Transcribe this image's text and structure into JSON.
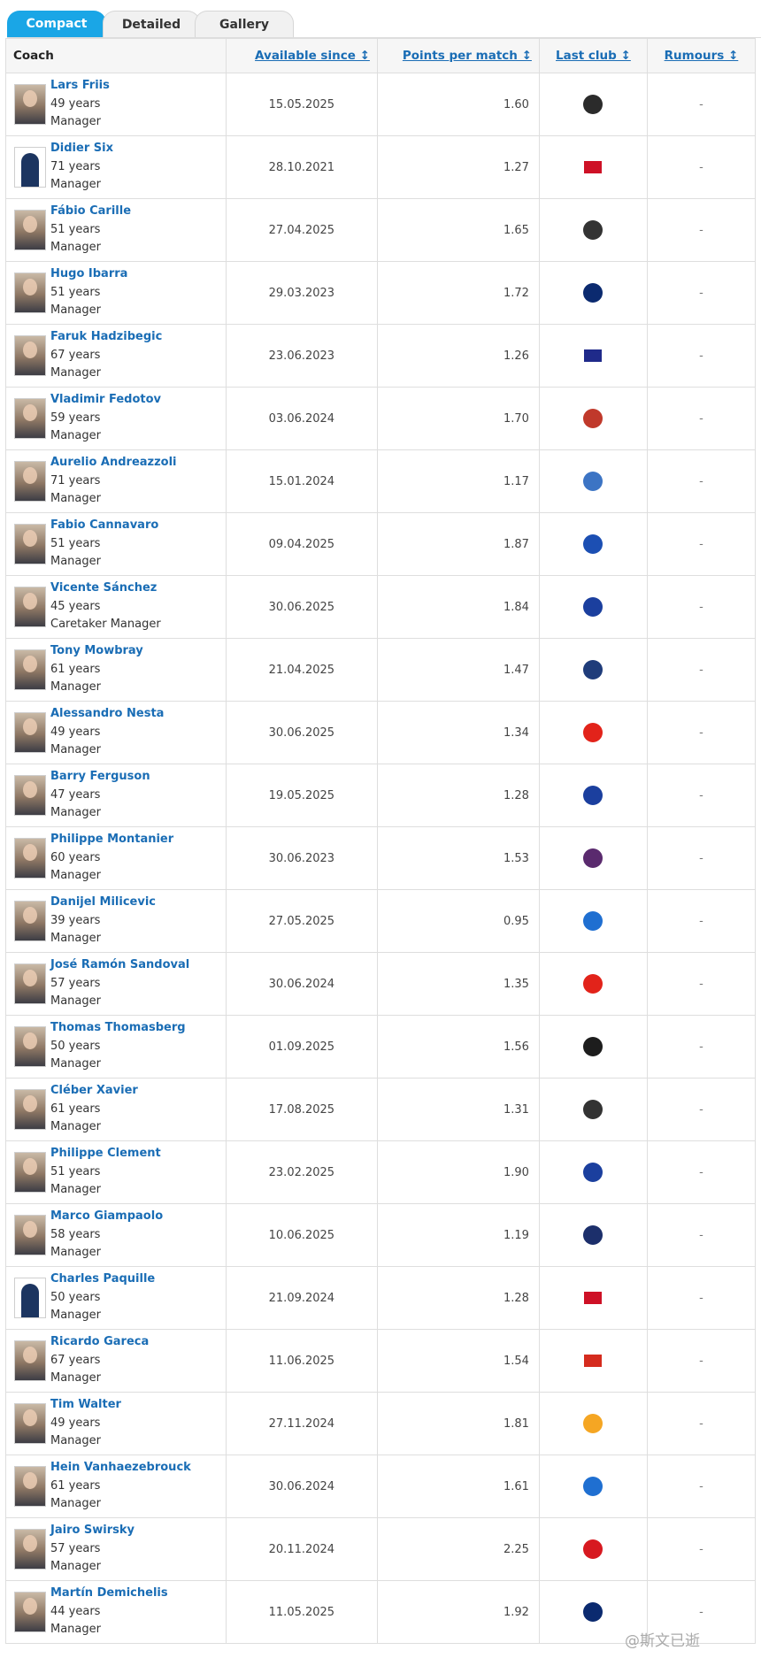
{
  "tabs": [
    "Compact",
    "Detailed",
    "Gallery"
  ],
  "headers": {
    "coach": "Coach",
    "available_since": "Available since ↕",
    "ppm": "Points per match ↕",
    "last_club": "Last club ↕",
    "rumours": "Rumours ↕"
  },
  "rows": [
    {
      "name": "Lars Friis",
      "age": "49 years",
      "role": "Manager",
      "since": "15.05.2025",
      "ppm": "1.60",
      "rumours": "-",
      "club_icon": "sparta-crest-icon",
      "club_color": "#2b2b2b"
    },
    {
      "name": "Didier Six",
      "age": "71 years",
      "role": "Manager",
      "since": "28.10.2021",
      "ppm": "1.27",
      "rumours": "-",
      "club_icon": "guinea-flag-icon",
      "club_color": "#ce1126"
    },
    {
      "name": "Fábio Carille",
      "age": "51 years",
      "role": "Manager",
      "since": "27.04.2025",
      "ppm": "1.65",
      "rumours": "-",
      "club_icon": "vasco-crest-icon",
      "club_color": "#333333"
    },
    {
      "name": "Hugo Ibarra",
      "age": "51 years",
      "role": "Manager",
      "since": "29.03.2023",
      "ppm": "1.72",
      "rumours": "-",
      "club_icon": "boca-crest-icon",
      "club_color": "#0b2a6f"
    },
    {
      "name": "Faruk Hadzibegic",
      "age": "67 years",
      "role": "Manager",
      "since": "23.06.2023",
      "ppm": "1.26",
      "rumours": "-",
      "club_icon": "bosnia-flag-icon",
      "club_color": "#1f2a8a"
    },
    {
      "name": "Vladimir Fedotov",
      "age": "59 years",
      "role": "Manager",
      "since": "03.06.2024",
      "ppm": "1.70",
      "rumours": "-",
      "club_icon": "cska-crest-icon",
      "club_color": "#c0392b"
    },
    {
      "name": "Aurelio Andreazzoli",
      "age": "71 years",
      "role": "Manager",
      "since": "15.01.2024",
      "ppm": "1.17",
      "rumours": "-",
      "club_icon": "empoli-crest-icon",
      "club_color": "#3c74c4"
    },
    {
      "name": "Fabio Cannavaro",
      "age": "51 years",
      "role": "Manager",
      "since": "09.04.2025",
      "ppm": "1.87",
      "rumours": "-",
      "club_icon": "dinamo-zagreb-crest-icon",
      "club_color": "#1c4fb3"
    },
    {
      "name": "Vicente Sánchez",
      "age": "45 years",
      "role": "Caretaker Manager",
      "since": "30.06.2025",
      "ppm": "1.84",
      "rumours": "-",
      "club_icon": "cruz-azul-crest-icon",
      "club_color": "#1b3f9e"
    },
    {
      "name": "Tony Mowbray",
      "age": "61 years",
      "role": "Manager",
      "since": "21.04.2025",
      "ppm": "1.47",
      "rumours": "-",
      "club_icon": "west-brom-crest-icon",
      "club_color": "#1f3c7a"
    },
    {
      "name": "Alessandro Nesta",
      "age": "49 years",
      "role": "Manager",
      "since": "30.06.2025",
      "ppm": "1.34",
      "rumours": "-",
      "club_icon": "monza-crest-icon",
      "club_color": "#e2231a"
    },
    {
      "name": "Barry Ferguson",
      "age": "47 years",
      "role": "Manager",
      "since": "19.05.2025",
      "ppm": "1.28",
      "rumours": "-",
      "club_icon": "rangers-crest-icon",
      "club_color": "#1b3f9e"
    },
    {
      "name": "Philippe Montanier",
      "age": "60 years",
      "role": "Manager",
      "since": "30.06.2023",
      "ppm": "1.53",
      "rumours": "-",
      "club_icon": "toulouse-crest-icon",
      "club_color": "#5a2a6e"
    },
    {
      "name": "Danijel Milicevic",
      "age": "39 years",
      "role": "Manager",
      "since": "27.05.2025",
      "ppm": "0.95",
      "rumours": "-",
      "club_icon": "gent-crest-icon",
      "club_color": "#1f6fd1"
    },
    {
      "name": "José Ramón Sandoval",
      "age": "57 years",
      "role": "Manager",
      "since": "30.06.2024",
      "ppm": "1.35",
      "rumours": "-",
      "club_icon": "granada-crest-icon",
      "club_color": "#e2231a"
    },
    {
      "name": "Thomas Thomasberg",
      "age": "50 years",
      "role": "Manager",
      "since": "01.09.2025",
      "ppm": "1.56",
      "rumours": "-",
      "club_icon": "midtjylland-crest-icon",
      "club_color": "#1d1d1d"
    },
    {
      "name": "Cléber Xavier",
      "age": "61 years",
      "role": "Manager",
      "since": "17.08.2025",
      "ppm": "1.31",
      "rumours": "-",
      "club_icon": "santos-crest-icon",
      "club_color": "#333333"
    },
    {
      "name": "Philippe Clement",
      "age": "51 years",
      "role": "Manager",
      "since": "23.02.2025",
      "ppm": "1.90",
      "rumours": "-",
      "club_icon": "rangers-crest-icon",
      "club_color": "#1b3f9e"
    },
    {
      "name": "Marco Giampaolo",
      "age": "58 years",
      "role": "Manager",
      "since": "10.06.2025",
      "ppm": "1.19",
      "rumours": "-",
      "club_icon": "lecce-crest-icon",
      "club_color": "#1c2f6b"
    },
    {
      "name": "Charles Paquille",
      "age": "50 years",
      "role": "Manager",
      "since": "21.09.2024",
      "ppm": "1.28",
      "rumours": "-",
      "club_icon": "guinea-flag-icon",
      "club_color": "#ce1126"
    },
    {
      "name": "Ricardo Gareca",
      "age": "67 years",
      "role": "Manager",
      "since": "11.06.2025",
      "ppm": "1.54",
      "rumours": "-",
      "club_icon": "chile-flag-icon",
      "club_color": "#d52b1e"
    },
    {
      "name": "Tim Walter",
      "age": "49 years",
      "role": "Manager",
      "since": "27.11.2024",
      "ppm": "1.81",
      "rumours": "-",
      "club_icon": "hull-crest-icon",
      "club_color": "#f5a623"
    },
    {
      "name": "Hein Vanhaezebrouck",
      "age": "61 years",
      "role": "Manager",
      "since": "30.06.2024",
      "ppm": "1.61",
      "rumours": "-",
      "club_icon": "gent-crest-icon",
      "club_color": "#1f6fd1"
    },
    {
      "name": "Jairo Swirsky",
      "age": "57 years",
      "role": "Manager",
      "since": "20.11.2024",
      "ppm": "2.25",
      "rumours": "-",
      "club_icon": "internacional-crest-icon",
      "club_color": "#d71920"
    },
    {
      "name": "Martín Demichelis",
      "age": "44 years",
      "role": "Manager",
      "since": "11.05.2025",
      "ppm": "1.92",
      "rumours": "-",
      "club_icon": "monterrey-crest-icon",
      "club_color": "#0b2a6f"
    }
  ],
  "watermark": "@斯文已逝"
}
